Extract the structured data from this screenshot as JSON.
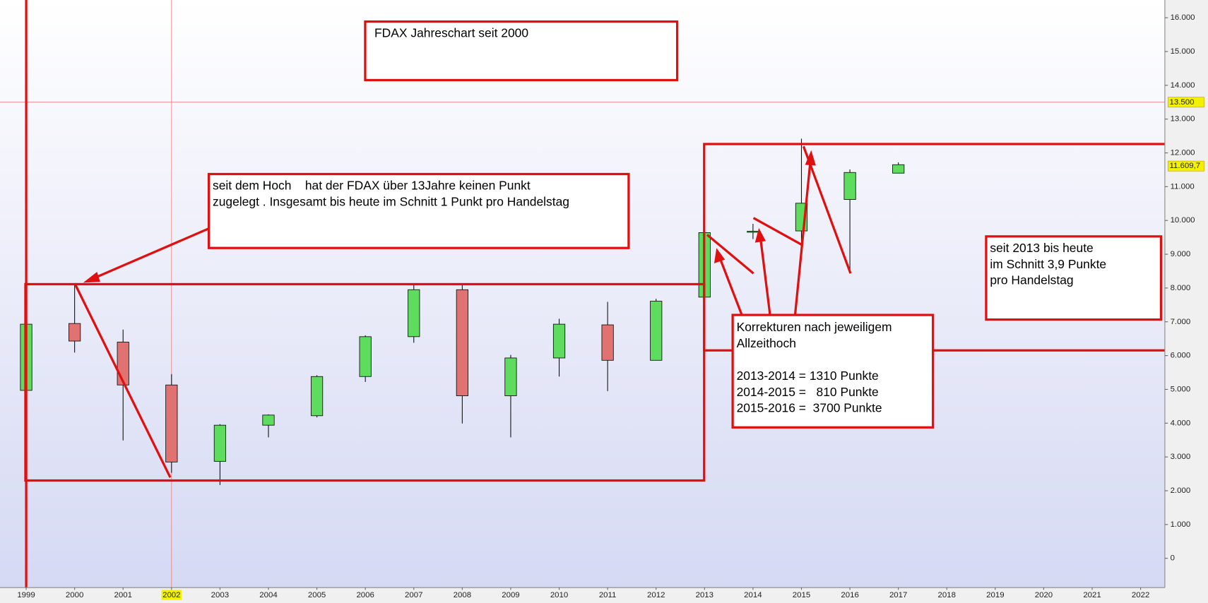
{
  "chart_data": {
    "type": "candlestick",
    "x": [
      1999,
      2000,
      2001,
      2002,
      2003,
      2004,
      2005,
      2006,
      2007,
      2008,
      2009,
      2010,
      2011,
      2012,
      2013,
      2014,
      2015,
      2016,
      2017
    ],
    "open": [
      4970,
      6950,
      6400,
      5130,
      2870,
      3940,
      4220,
      5380,
      6560,
      7950,
      4810,
      5930,
      6910,
      5860,
      7730,
      9650,
      9690,
      10620,
      11400
    ],
    "high": [
      6960,
      8140,
      6770,
      5450,
      3970,
      4260,
      5420,
      6600,
      8090,
      8100,
      6020,
      7090,
      7590,
      7680,
      9640,
      9900,
      12420,
      11510,
      11720
    ],
    "low": [
      4970,
      6090,
      3490,
      2530,
      2170,
      3580,
      4170,
      5220,
      6380,
      3990,
      3580,
      5380,
      4950,
      5860,
      7730,
      9450,
      9280,
      8430,
      11400
    ],
    "close": [
      6930,
      6430,
      5130,
      2850,
      3940,
      4240,
      5380,
      6560,
      7950,
      4810,
      5930,
      6930,
      5860,
      7610,
      9640,
      9680,
      10510,
      11420,
      11650
    ],
    "up_color": "#5ddc5d",
    "down_color": "#e07272",
    "xlim": [
      1998.46,
      2022.5
    ],
    "xticks": [
      1999,
      2000,
      2001,
      2002,
      2003,
      2004,
      2005,
      2006,
      2007,
      2008,
      2009,
      2010,
      2011,
      2012,
      2013,
      2014,
      2015,
      2016,
      2017,
      2018,
      2019,
      2020,
      2021,
      2022
    ],
    "ylim": [
      -866,
      16524
    ],
    "yticks": [
      0,
      {
        "value": 1000,
        "label": "1.000"
      },
      {
        "value": 2000,
        "label": "2.000"
      },
      {
        "value": 3000,
        "label": "3.000"
      },
      {
        "value": 4000,
        "label": "4.000"
      },
      {
        "value": 5000,
        "label": "5.000"
      },
      {
        "value": 6000,
        "label": "6.000"
      },
      {
        "value": 7000,
        "label": "7.000"
      },
      {
        "value": 8000,
        "label": "8.000"
      },
      {
        "value": 9000,
        "label": "9.000"
      },
      {
        "value": 10000,
        "label": "10.000"
      },
      {
        "value": 11000,
        "label": "11.000"
      },
      {
        "value": 12000,
        "label": "12.000"
      },
      {
        "value": 13000,
        "label": "13.000"
      },
      {
        "value": 14000,
        "label": "14.000"
      },
      {
        "value": 15000,
        "label": "15.000"
      },
      {
        "value": 16000,
        "label": "16.000"
      }
    ],
    "cursor_x": 2002,
    "markers": [
      {
        "value": 13500,
        "label": "13.500"
      },
      {
        "value": 11609.7,
        "label": "11.609,7"
      }
    ],
    "annotations": [
      [
        "FDAX Jahreschart seit 2000"
      ],
      [
        "seit dem Hoch    hat der FDAX über 13Jahre keinen Punkt",
        "zugelegt . Insgesamt bis heute im Schnitt 1 Punkt pro Handelstag"
      ],
      [
        "Korrekturen nach jeweiligem",
        "Allzeithoch",
        "2013-2014 = 1310 Punkte",
        "2014-2015 =   810 Punkte",
        "2015-2016 =  3700 Punkte"
      ],
      [
        "seit 2013 bis heute",
        "im Schnitt 3,9 Punkte",
        "pro Handelstag"
      ]
    ]
  }
}
